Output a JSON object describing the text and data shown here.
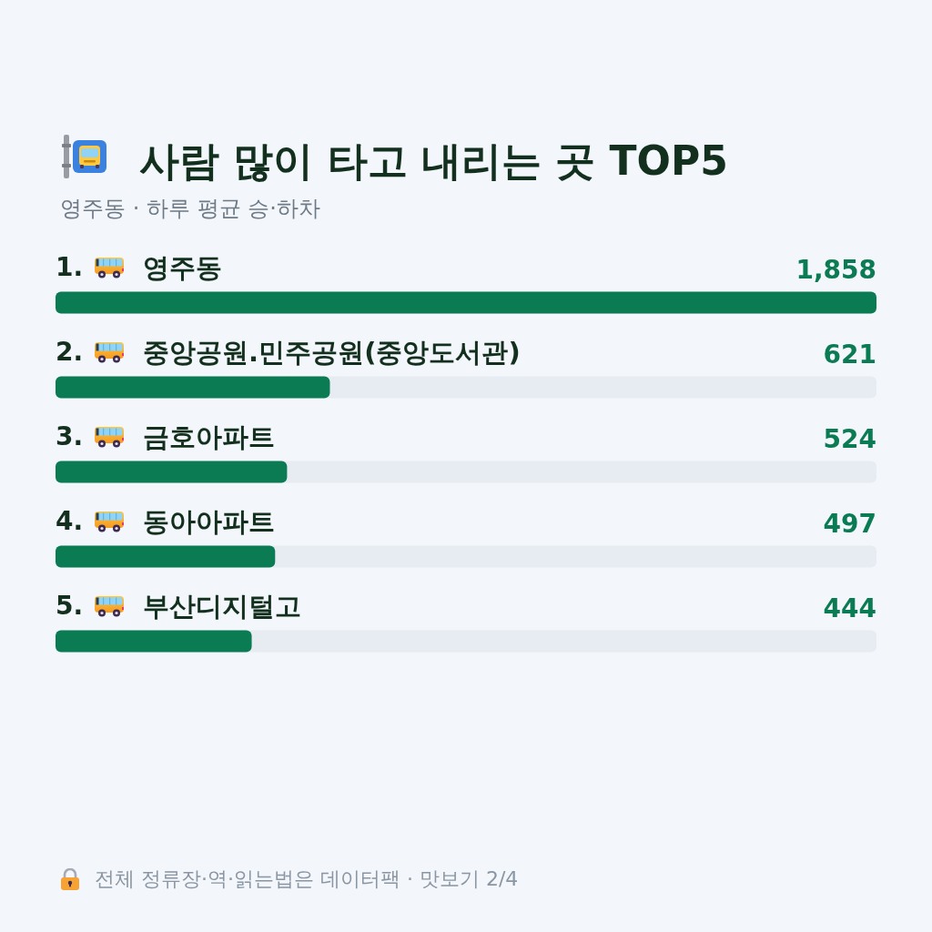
{
  "chart_data": {
    "type": "bar",
    "orientation": "horizontal",
    "title": "사람 많이 타고 내리는 곳 TOP5",
    "subtitle": "영주동 · 하루 평균 승·하차",
    "categories": [
      "1. 영주동",
      "2. 중앙공원.민주공원(중앙도서관)",
      "3. 금호아파트",
      "4. 동아아파트",
      "5. 부산디지털고"
    ],
    "values": [
      1858,
      621,
      524,
      497,
      444
    ],
    "value_labels": [
      "1,858",
      "621",
      "524",
      "497",
      "444"
    ],
    "color": "#0a7b53",
    "annotations": [
      "전체 정류장·역·읽는법은 데이터팩 · 맛보기 2/4"
    ]
  }
}
